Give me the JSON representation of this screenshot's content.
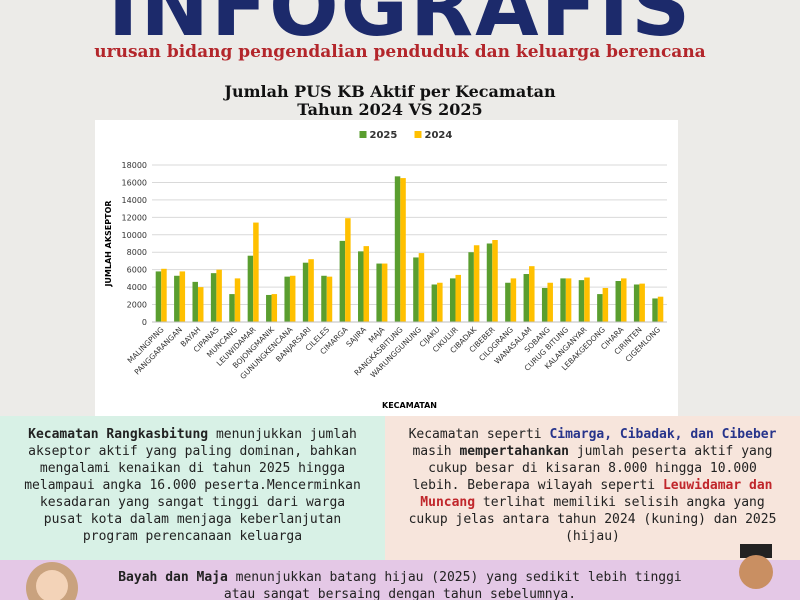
{
  "header": {
    "title": "INFOGRAFIS",
    "subtitle": "urusan bidang pengendalian penduduk dan keluarga berencana"
  },
  "chart_data": {
    "type": "bar",
    "title": [
      "Jumlah PUS KB Aktif per Kecamatan",
      "Tahun 2024 VS 2025"
    ],
    "y_label": "JUMLAH AKSEPTOR",
    "x_label": "KECAMATAN",
    "categories": [
      "MALINGPING",
      "PANGGARANGAN",
      "BAYAH",
      "CIPANAS",
      "MUNCANG",
      "LEUWIDAMAR",
      "BOJONGMANIK",
      "GUNUNGKENCANA",
      "BANJARSARI",
      "CILELES",
      "CIMARGA",
      "SAJIRA",
      "MAJA",
      "RANGKASBITUNG",
      "WARUNGGUNUNG",
      "CIJAKU",
      "CIKULUR",
      "CIBADAK",
      "CIBEBER",
      "CILOGRANG",
      "WANASALAM",
      "SOBANG",
      "CURUG BITUNG",
      "KALANGANYAR",
      "LEBAKGEDONG",
      "CIHARA",
      "CIRINTEN",
      "CIGEMLONG"
    ],
    "series": [
      {
        "name": "2025",
        "color": "#5a9e2f",
        "values": [
          5800,
          5300,
          4600,
          5600,
          3200,
          7600,
          3100,
          5200,
          6800,
          5300,
          9300,
          8100,
          6700,
          16700,
          7400,
          4300,
          5000,
          8000,
          9000,
          4500,
          5500,
          3900,
          5000,
          4800,
          3200,
          4700,
          4300,
          2700
        ]
      },
      {
        "name": "2024",
        "color": "#ffc000",
        "values": [
          6100,
          5800,
          4000,
          6000,
          5000,
          11400,
          3200,
          5300,
          7200,
          5200,
          11900,
          8700,
          6700,
          16500,
          7900,
          4500,
          5400,
          8800,
          9400,
          5000,
          6400,
          4500,
          5000,
          5100,
          3900,
          5000,
          4400,
          2900
        ]
      }
    ],
    "ylim": [
      0,
      18000
    ],
    "yticks": [
      0,
      2000,
      4000,
      6000,
      8000,
      10000,
      12000,
      14000,
      16000,
      18000
    ],
    "grid": true,
    "legend": "top"
  },
  "panels": {
    "left": [
      "Kecamatan Rangkasbitung",
      " menunjukkan jumlah akseptor aktif yang paling dominan, bahkan mengalami kenaikan di tahun 2025 hingga melampaui angka 16.000 peserta.Mencerminkan kesadaran yang sangat tinggi dari warga pusat kota dalam menjaga keberlanjutan program perencanaan keluarga"
    ],
    "right": [
      "Kecamatan seperti ",
      "Cimarga, Cibadak, dan Cibeber",
      " masih ",
      "mempertahankan",
      " jumlah peserta aktif yang cukup besar di kisaran 8.000 hingga 10.000 lebih. Beberapa wilayah seperti ",
      "Leuwidamar dan Muncang",
      " terlihat memiliki selisih angka yang cukup jelas antara tahun 2024 (kuning) dan 2025 (hijau)"
    ],
    "bottom": [
      "Bayah dan Maja",
      " menunjukkan batang hijau (2025) yang sedikit lebih tinggi atau sangat bersaing dengan tahun sebelumnya."
    ]
  }
}
